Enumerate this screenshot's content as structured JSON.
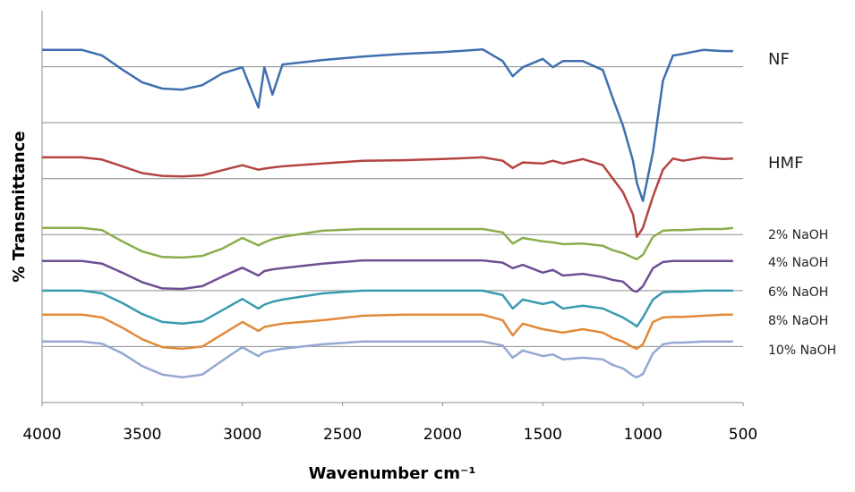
{
  "chart_data": {
    "type": "line",
    "x_label": "Wavenumber cm⁻¹",
    "y_label": "% Transmittance",
    "x": [
      4000,
      3800,
      3700,
      3600,
      3500,
      3400,
      3300,
      3200,
      3100,
      3000,
      2920,
      2890,
      2850,
      2800,
      2600,
      2400,
      2200,
      2000,
      1800,
      1700,
      1650,
      1600,
      1500,
      1450,
      1400,
      1300,
      1200,
      1150,
      1100,
      1050,
      1030,
      1000,
      950,
      900,
      850,
      800,
      700,
      600,
      550
    ],
    "xlim": [
      4000,
      500
    ],
    "xticks": [
      4000,
      3500,
      3000,
      2500,
      2000,
      1500,
      1000,
      500
    ],
    "ylim": [
      0,
      7
    ],
    "yticks": [
      1,
      2,
      3,
      4,
      5,
      6
    ],
    "grid": true,
    "series": [
      {
        "name": "NF",
        "color": "#3f6fae",
        "values": [
          6.3,
          6.3,
          6.2,
          5.95,
          5.72,
          5.61,
          5.59,
          5.67,
          5.88,
          5.99,
          5.27,
          5.99,
          5.5,
          6.04,
          6.12,
          6.18,
          6.23,
          6.26,
          6.31,
          6.1,
          5.83,
          5.99,
          6.14,
          5.99,
          6.1,
          6.1,
          5.94,
          5.43,
          4.95,
          4.32,
          3.92,
          3.6,
          4.47,
          5.75,
          6.2,
          6.23,
          6.3,
          6.28,
          6.28
        ]
      },
      {
        "name": "HMF",
        "color": "#b34440",
        "values": [
          4.38,
          4.38,
          4.34,
          4.22,
          4.1,
          4.05,
          4.04,
          4.06,
          4.15,
          4.24,
          4.16,
          4.18,
          4.2,
          4.22,
          4.27,
          4.32,
          4.33,
          4.35,
          4.38,
          4.32,
          4.19,
          4.29,
          4.27,
          4.32,
          4.27,
          4.35,
          4.24,
          4.0,
          3.76,
          3.36,
          2.96,
          3.12,
          3.68,
          4.16,
          4.36,
          4.32,
          4.38,
          4.35,
          4.36
        ]
      },
      {
        "name": "2% NaOH",
        "color": "#8aae4a",
        "values": [
          3.12,
          3.12,
          3.08,
          2.88,
          2.7,
          2.6,
          2.59,
          2.62,
          2.75,
          2.94,
          2.81,
          2.86,
          2.92,
          2.96,
          3.07,
          3.1,
          3.1,
          3.1,
          3.1,
          3.04,
          2.84,
          2.94,
          2.88,
          2.86,
          2.83,
          2.84,
          2.8,
          2.72,
          2.67,
          2.59,
          2.56,
          2.64,
          2.96,
          3.07,
          3.08,
          3.08,
          3.1,
          3.1,
          3.12
        ]
      },
      {
        "name": "4% NaOH",
        "color": "#6e4f94",
        "values": [
          2.53,
          2.53,
          2.48,
          2.32,
          2.15,
          2.04,
          2.03,
          2.08,
          2.25,
          2.41,
          2.27,
          2.35,
          2.38,
          2.4,
          2.48,
          2.54,
          2.54,
          2.54,
          2.54,
          2.5,
          2.4,
          2.46,
          2.32,
          2.37,
          2.27,
          2.3,
          2.24,
          2.19,
          2.16,
          2.0,
          1.98,
          2.08,
          2.4,
          2.51,
          2.53,
          2.53,
          2.53,
          2.53,
          2.53
        ]
      },
      {
        "name": "6% NaOH",
        "color": "#3a9bb0",
        "values": [
          2.0,
          2.0,
          1.95,
          1.78,
          1.58,
          1.44,
          1.41,
          1.45,
          1.65,
          1.85,
          1.68,
          1.75,
          1.8,
          1.84,
          1.95,
          2.0,
          2.0,
          2.0,
          2.0,
          1.92,
          1.68,
          1.84,
          1.76,
          1.8,
          1.68,
          1.73,
          1.68,
          1.6,
          1.52,
          1.41,
          1.36,
          1.52,
          1.84,
          1.97,
          1.98,
          1.98,
          2.0,
          2.0,
          2.0
        ]
      },
      {
        "name": "8% NaOH",
        "color": "#e08a3a",
        "values": [
          1.57,
          1.57,
          1.52,
          1.34,
          1.13,
          0.99,
          0.96,
          1.0,
          1.22,
          1.44,
          1.28,
          1.35,
          1.38,
          1.41,
          1.47,
          1.55,
          1.57,
          1.57,
          1.57,
          1.47,
          1.2,
          1.41,
          1.31,
          1.28,
          1.25,
          1.31,
          1.25,
          1.15,
          1.09,
          0.99,
          0.96,
          1.04,
          1.44,
          1.52,
          1.53,
          1.53,
          1.55,
          1.57,
          1.57
        ]
      },
      {
        "name": "10% NaOH",
        "color": "#95a8d2",
        "values": [
          1.09,
          1.09,
          1.05,
          0.88,
          0.65,
          0.5,
          0.45,
          0.5,
          0.75,
          0.99,
          0.83,
          0.9,
          0.93,
          0.96,
          1.04,
          1.09,
          1.09,
          1.09,
          1.09,
          1.02,
          0.8,
          0.93,
          0.83,
          0.86,
          0.77,
          0.8,
          0.77,
          0.67,
          0.61,
          0.48,
          0.45,
          0.51,
          0.88,
          1.04,
          1.07,
          1.07,
          1.09,
          1.09,
          1.09
        ]
      }
    ]
  }
}
